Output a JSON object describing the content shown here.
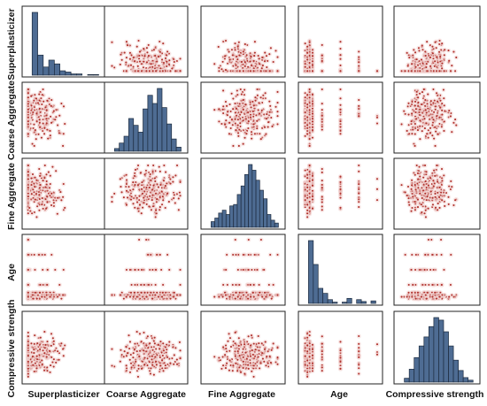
{
  "colors": {
    "histogram_fill": "#4e6c93",
    "histogram_edge": "#1c2a3d",
    "point": "#b0312c",
    "point_halo": "#f3d6d4",
    "frame": "#222222"
  },
  "chart_data": {
    "type": "scatter",
    "layout": "scatter-matrix",
    "grid": false,
    "legend": "none",
    "variables": [
      "Superplasticizer",
      "Coarse Aggregate",
      "Fine  Aggregate",
      "Age",
      "Compressive strength"
    ],
    "diagonal": "histogram",
    "histograms": {
      "Superplasticizer": [
        100,
        32,
        13,
        24,
        18,
        7,
        5,
        2,
        2,
        0,
        1,
        1
      ],
      "Coarse Aggregate": [
        4,
        12,
        22,
        48,
        38,
        28,
        62,
        82,
        70,
        92,
        64,
        40,
        18,
        6
      ],
      "Fine  Aggregate": [
        8,
        13,
        20,
        24,
        18,
        30,
        32,
        46,
        58,
        74,
        88,
        80,
        66,
        52,
        40,
        18,
        10,
        6
      ],
      "Age": [
        100,
        62,
        24,
        16,
        6,
        2,
        0,
        2,
        8,
        0,
        6,
        3,
        0,
        4
      ],
      "Compressive strength": [
        6,
        20,
        38,
        56,
        70,
        86,
        100,
        96,
        78,
        56,
        34,
        18,
        7,
        3
      ]
    }
  }
}
